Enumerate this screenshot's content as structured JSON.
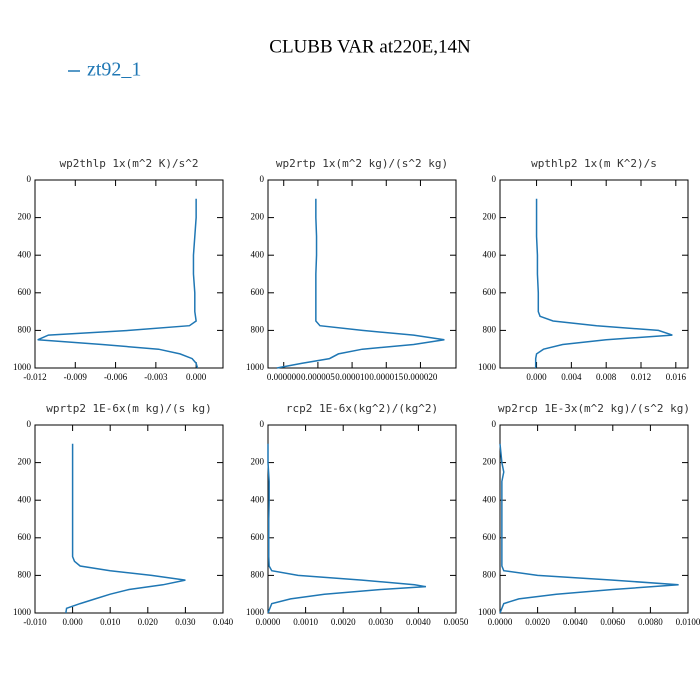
{
  "title": "CLUBB VAR at220E,14N",
  "legend": [
    {
      "name": "zt92_1",
      "color": "#1f77b4"
    }
  ],
  "chart_data": [
    {
      "type": "line",
      "title": "wp2thlp  1x(m^2 K)/s^2",
      "levels": [
        100,
        200,
        300,
        400,
        500,
        600,
        700,
        750,
        775,
        800,
        825,
        850,
        875,
        900,
        925,
        950,
        975,
        1000
      ],
      "values": [
        0,
        0,
        -0.0001,
        -0.0002,
        -0.0002,
        -0.0001,
        -0.0001,
        0,
        -0.0005,
        -0.005,
        -0.011,
        -0.0118,
        -0.007,
        -0.0028,
        -0.0012,
        -0.0003,
        0,
        0.0001
      ],
      "xlim": [
        -0.012,
        0.002
      ],
      "xticks": [
        {
          "value": -0.012,
          "label": "-0.012"
        },
        {
          "value": -0.009,
          "label": "-0.009"
        },
        {
          "value": -0.006,
          "label": "-0.006"
        },
        {
          "value": -0.003,
          "label": "-0.003"
        },
        {
          "value": 0,
          "label": "0.000"
        }
      ],
      "ylim": [
        1000,
        0
      ],
      "yticks": [
        0,
        200,
        400,
        600,
        800,
        1000
      ]
    },
    {
      "type": "line",
      "title": "wp2rtp  1x(m^2 kg)/(s^2 kg)",
      "levels": [
        100,
        200,
        300,
        400,
        500,
        600,
        700,
        750,
        775,
        800,
        825,
        850,
        875,
        900,
        925,
        950,
        975,
        1000
      ],
      "values": [
        4.7e-06,
        4.7e-06,
        4.8e-06,
        4.8e-06,
        4.7e-06,
        4.7e-06,
        4.7e-06,
        4.7e-06,
        5.3e-06,
        1.15e-05,
        1.9e-05,
        2.35e-05,
        1.9e-05,
        1.15e-05,
        8e-06,
        6.7e-06,
        2.7e-06,
        -1e-06
      ],
      "xlim": [
        -2.3e-06,
        2.52e-05
      ],
      "xticks": [
        {
          "value": 0,
          "label": "0.000000"
        },
        {
          "value": 5e-06,
          "label": "0.000005"
        },
        {
          "value": 1e-05,
          "label": "0.000010"
        },
        {
          "value": 1.5e-05,
          "label": "0.000015"
        },
        {
          "value": 2e-05,
          "label": "0.000020"
        }
      ],
      "ylim": [
        1000,
        0
      ],
      "yticks": [
        0,
        200,
        400,
        600,
        800,
        1000
      ]
    },
    {
      "type": "line",
      "title": "wpthlp2  1x(m K^2)/s",
      "levels": [
        100,
        200,
        300,
        400,
        500,
        600,
        700,
        725,
        750,
        775,
        800,
        825,
        850,
        875,
        900,
        925,
        950,
        1000
      ],
      "values": [
        0,
        0,
        0,
        0.0001,
        0.0001,
        0.0002,
        0.0002,
        0.0004,
        0.0019,
        0.0069,
        0.014,
        0.0156,
        0.008,
        0.003,
        0.0008,
        0,
        -0.0001,
        -0.0001
      ],
      "xlim": [
        -0.0042,
        0.0174
      ],
      "xticks": [
        {
          "value": 0,
          "label": "0.000"
        },
        {
          "value": 0.004,
          "label": "0.004"
        },
        {
          "value": 0.008,
          "label": "0.008"
        },
        {
          "value": 0.012,
          "label": "0.012"
        },
        {
          "value": 0.016,
          "label": "0.016"
        }
      ],
      "ylim": [
        1000,
        0
      ],
      "yticks": [
        0,
        200,
        400,
        600,
        800,
        1000
      ]
    },
    {
      "type": "line",
      "title": "wprtp2  1E-6x(m kg)/(s kg)",
      "levels": [
        100,
        200,
        300,
        400,
        500,
        600,
        700,
        725,
        750,
        775,
        800,
        825,
        850,
        875,
        900,
        925,
        950,
        975,
        1000
      ],
      "values": [
        0,
        0,
        0,
        0,
        0,
        0,
        0,
        0.0005,
        0.002,
        0.01,
        0.021,
        0.03,
        0.024,
        0.015,
        0.01,
        0.006,
        0.002,
        -0.0016,
        -0.0018
      ],
      "xlim": [
        -0.01,
        0.04
      ],
      "xticks": [
        {
          "value": -0.01,
          "label": "-0.010"
        },
        {
          "value": 0,
          "label": "0.000"
        },
        {
          "value": 0.01,
          "label": "0.010"
        },
        {
          "value": 0.02,
          "label": "0.020"
        },
        {
          "value": 0.03,
          "label": "0.030"
        },
        {
          "value": 0.04,
          "label": "0.040"
        }
      ],
      "ylim": [
        1000,
        0
      ],
      "yticks": [
        0,
        200,
        400,
        600,
        800,
        1000
      ]
    },
    {
      "type": "line",
      "title": "rcp2  1E-6x(kg^2)/(kg^2)",
      "levels": [
        100,
        200,
        300,
        400,
        500,
        600,
        700,
        750,
        775,
        800,
        825,
        850,
        860,
        875,
        900,
        925,
        950,
        1000
      ],
      "values": [
        0,
        0,
        3e-05,
        3e-05,
        2e-05,
        2e-05,
        2e-05,
        3e-05,
        0.0001,
        0.0008,
        0.0025,
        0.0039,
        0.0042,
        0.003,
        0.0015,
        0.0006,
        0.0001,
        0
      ],
      "xlim": [
        0,
        0.005
      ],
      "xticks": [
        {
          "value": 0,
          "label": "0.0000"
        },
        {
          "value": 0.001,
          "label": "0.0010"
        },
        {
          "value": 0.002,
          "label": "0.0020"
        },
        {
          "value": 0.003,
          "label": "0.0030"
        },
        {
          "value": 0.004,
          "label": "0.0040"
        },
        {
          "value": 0.005,
          "label": "0.0050"
        }
      ],
      "ylim": [
        1000,
        0
      ],
      "yticks": [
        0,
        200,
        400,
        600,
        800,
        1000
      ]
    },
    {
      "type": "line",
      "title": "wp2rcp  1E-3x(m^2 kg)/(s^2 kg)",
      "levels": [
        100,
        200,
        250,
        300,
        400,
        500,
        600,
        700,
        750,
        775,
        800,
        825,
        850,
        875,
        900,
        925,
        950,
        1000
      ],
      "values": [
        0,
        0.0001,
        0.0002,
        0.0001,
        0.0001,
        0.0001,
        0.0001,
        0.0001,
        0.0001,
        0.0002,
        0.002,
        0.006,
        0.0095,
        0.006,
        0.003,
        0.001,
        0.0002,
        0
      ],
      "xlim": [
        0,
        0.01
      ],
      "xticks": [
        {
          "value": 0,
          "label": "0.0000"
        },
        {
          "value": 0.002,
          "label": "0.0020"
        },
        {
          "value": 0.004,
          "label": "0.0040"
        },
        {
          "value": 0.006,
          "label": "0.0060"
        },
        {
          "value": 0.008,
          "label": "0.0080"
        },
        {
          "value": 0.01,
          "label": "0.0100"
        }
      ],
      "ylim": [
        1000,
        0
      ],
      "yticks": [
        0,
        200,
        400,
        600,
        800,
        1000
      ]
    }
  ]
}
